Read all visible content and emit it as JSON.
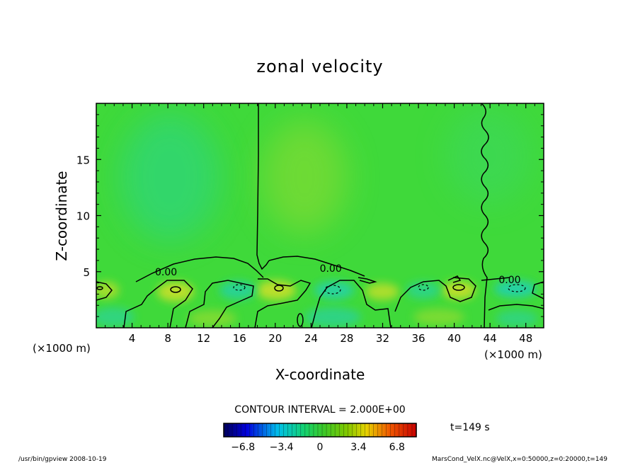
{
  "chart_data": {
    "type": "heatmap",
    "title": "zonal velocity",
    "xlabel": "X-coordinate",
    "ylabel": "Z-coordinate",
    "x_unit": "(×1000 m)",
    "y_unit": "(×1000 m)",
    "xlim": [
      0,
      50
    ],
    "ylim": [
      0,
      20
    ],
    "x_ticks": [
      4,
      8,
      12,
      16,
      20,
      24,
      28,
      32,
      36,
      40,
      44,
      48
    ],
    "y_ticks": [
      5,
      10,
      15
    ],
    "x_tick_labels": [
      "4",
      "8",
      "12",
      "16",
      "20",
      "24",
      "28",
      "32",
      "36",
      "40",
      "44",
      "48"
    ],
    "y_tick_labels": [
      "5",
      "10",
      "15"
    ],
    "contour_interval_text": "CONTOUR INTERVAL = 2.000E+00",
    "contour_labels": [
      {
        "text": "0.00",
        "x": 7.8,
        "y": 5.0
      },
      {
        "text": "0.00",
        "x": 26.2,
        "y": 5.3
      },
      {
        "text": "0.00",
        "x": 46.2,
        "y": 4.3
      }
    ],
    "colorbar": {
      "min": -8.5,
      "max": 8.5,
      "tick_values": [
        -6.8,
        -3.4,
        0,
        3.4,
        6.8
      ],
      "tick_labels": [
        "−6.8",
        "−3.4",
        "0",
        "3.4",
        "6.8"
      ]
    },
    "time_text": "t=149 s",
    "footer_left": "/usr/bin/gpview   2008-10-19",
    "footer_right": "MarsCond_VelX.nc@VelX,x=0:50000,z=0:20000,t=149"
  }
}
